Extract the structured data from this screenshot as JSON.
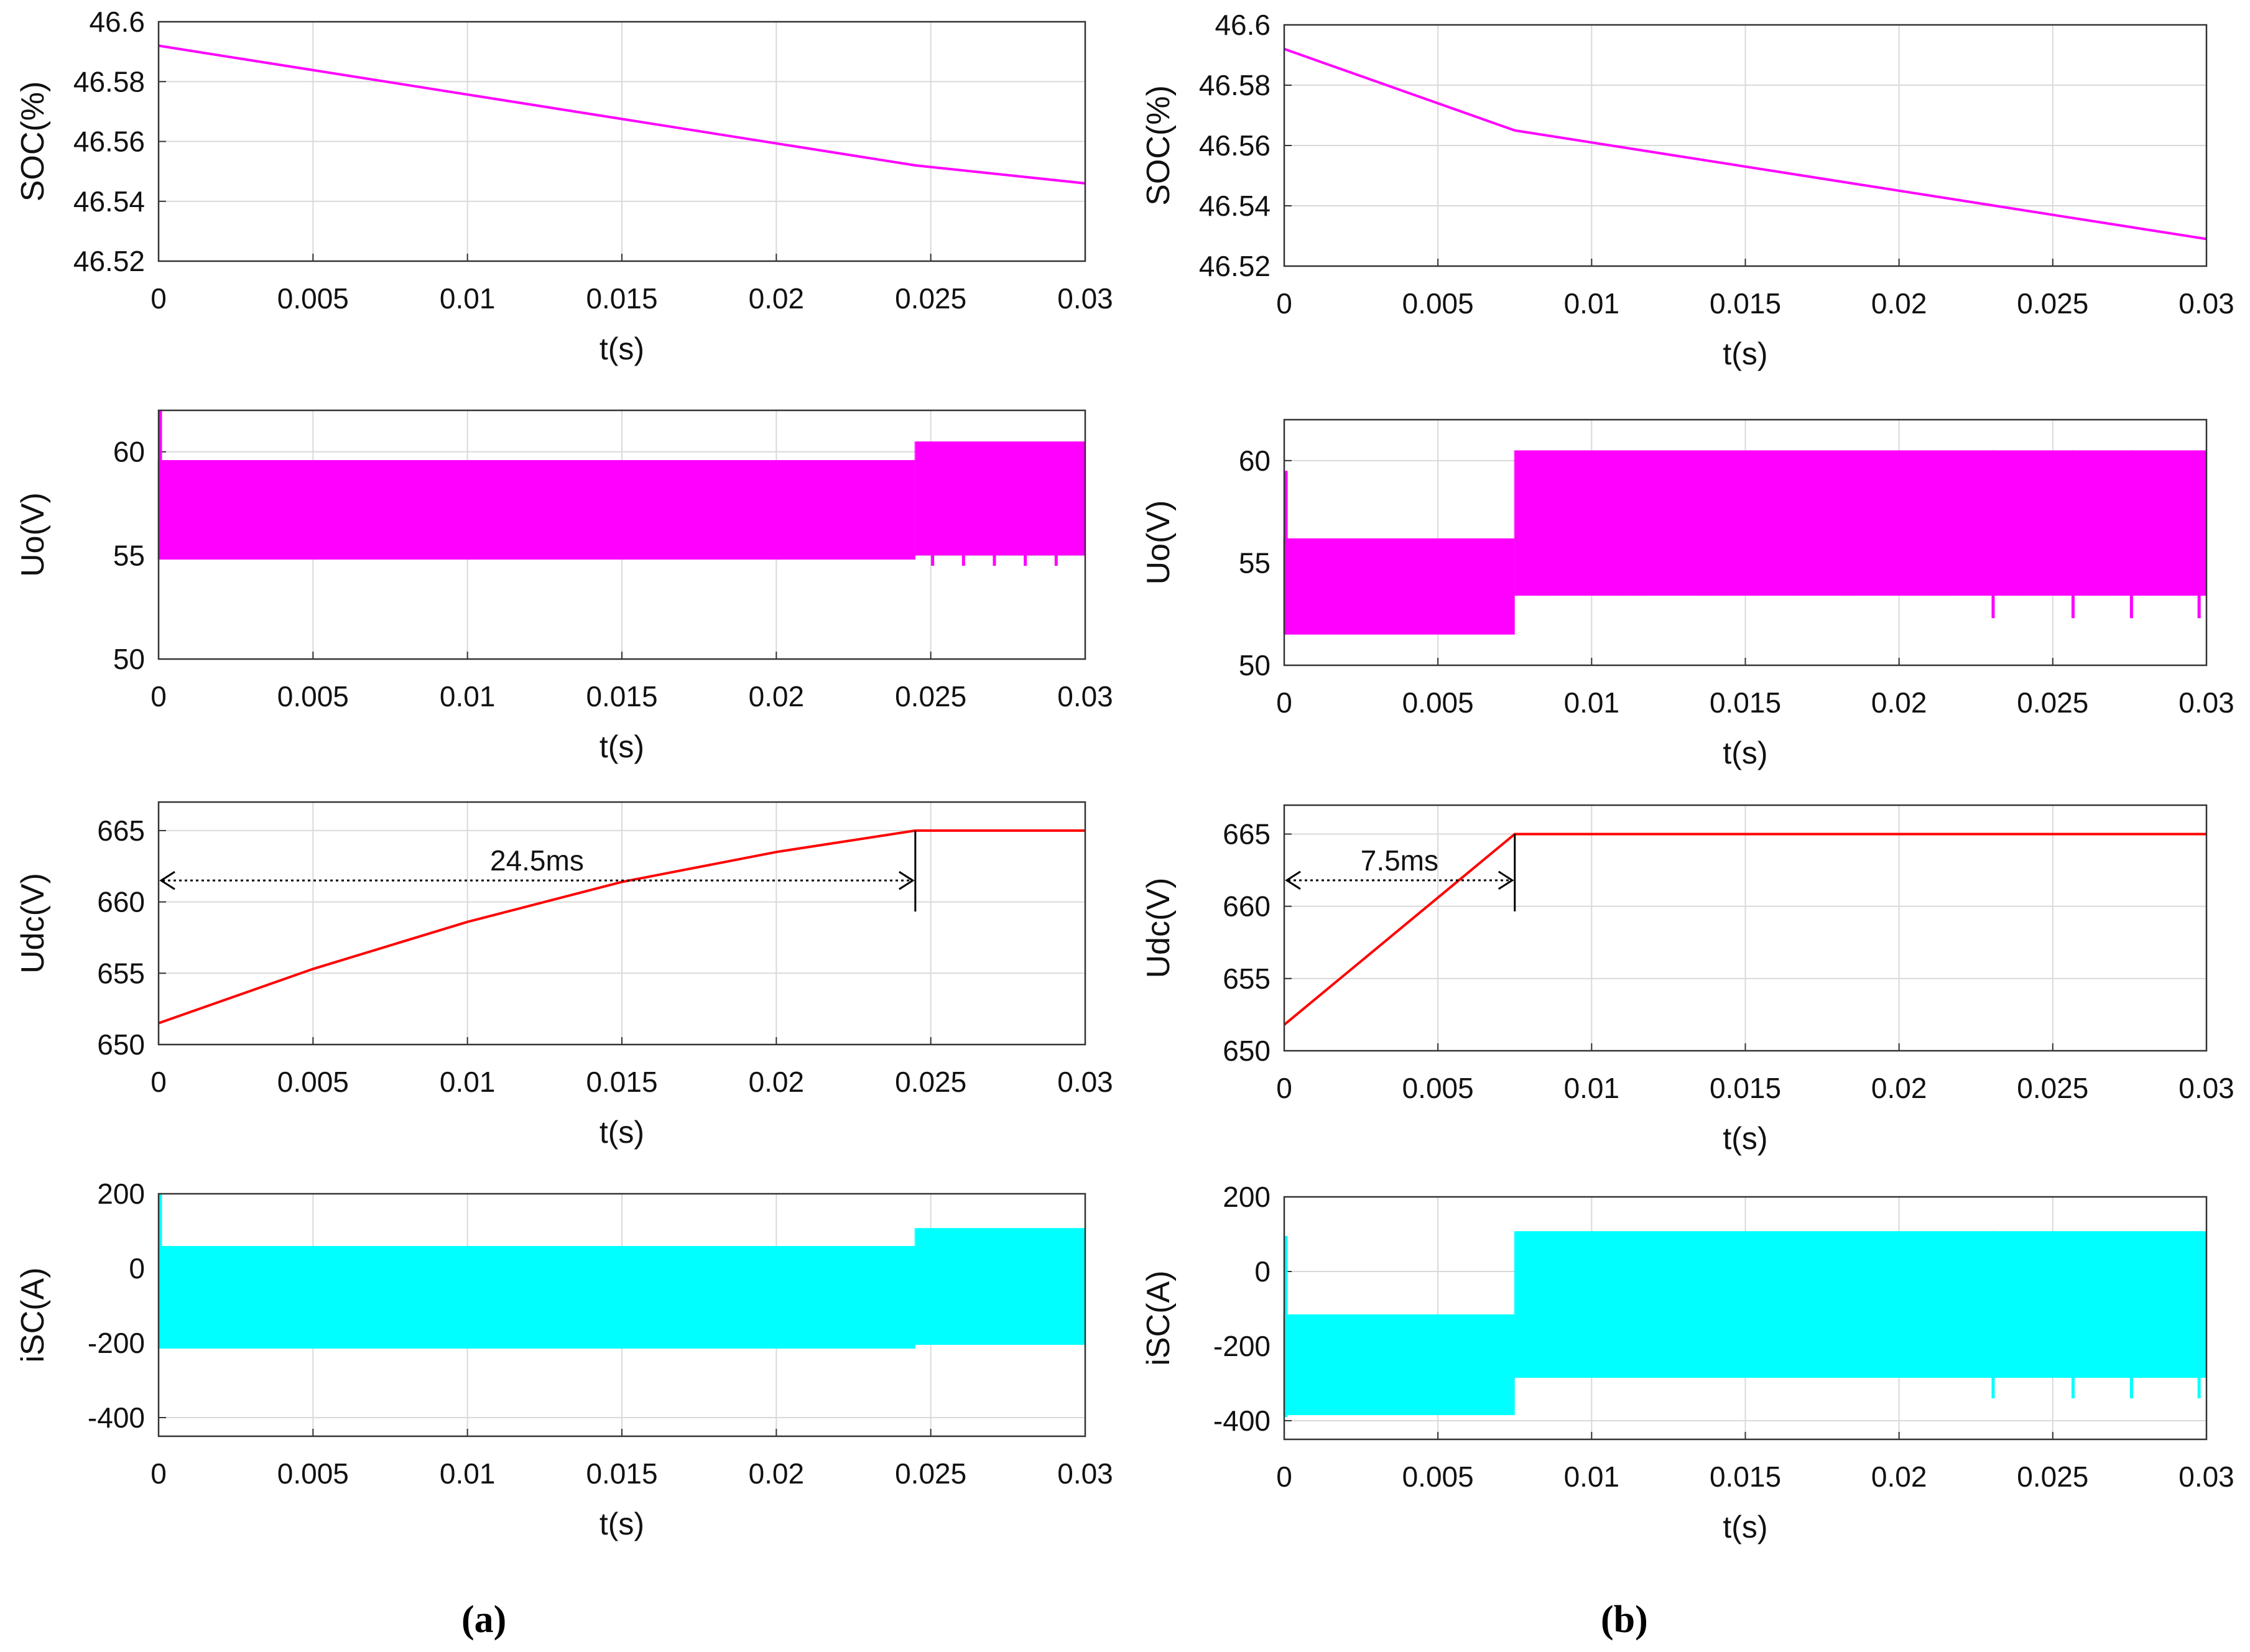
{
  "chart_data": [
    {
      "type": "line",
      "panel": "(a)",
      "ylabel": "SOC(%)",
      "xlabel": "t(s)",
      "xlim": [
        0,
        0.03
      ],
      "ylim": [
        46.52,
        46.6
      ],
      "xticks": [
        "0",
        "0.005",
        "0.01",
        "0.015",
        "0.02",
        "0.025",
        "0.03"
      ],
      "yticks": [
        "46.52",
        "46.54",
        "46.56",
        "46.58",
        "46.6"
      ],
      "grid": true,
      "color": "#ff00ff",
      "series": [
        {
          "x": [
            0,
            0.0245,
            0.03
          ],
          "y": [
            46.592,
            46.552,
            46.546
          ]
        }
      ]
    },
    {
      "type": "area",
      "panel": "(a)",
      "ylabel": "Uo(V)",
      "xlabel": "t(s)",
      "xlim": [
        0,
        0.03
      ],
      "ylim": [
        50,
        62
      ],
      "xticks": [
        "0",
        "0.005",
        "0.01",
        "0.015",
        "0.02",
        "0.025",
        "0.03"
      ],
      "yticks": [
        "50",
        "55",
        "60"
      ],
      "grid": true,
      "color": "#ff00ff",
      "envelope": [
        {
          "x0": 0,
          "x1": 0.0245,
          "lo": 54.8,
          "hi": 59.6
        },
        {
          "x0": 0.0245,
          "x1": 0.03,
          "lo": 55.0,
          "hi": 60.5
        }
      ],
      "spikes": [
        {
          "x": 0,
          "hi": 62,
          "lo": 55
        },
        {
          "x": 0.025,
          "lo": 54.5
        },
        {
          "x": 0.026,
          "lo": 54.5
        },
        {
          "x": 0.027,
          "lo": 54.5
        },
        {
          "x": 0.028,
          "lo": 54.5
        },
        {
          "x": 0.029,
          "lo": 54.5
        }
      ]
    },
    {
      "type": "line",
      "panel": "(a)",
      "ylabel": "Udc(V)",
      "xlabel": "t(s)",
      "xlim": [
        0,
        0.03
      ],
      "ylim": [
        650,
        667
      ],
      "xticks": [
        "0",
        "0.005",
        "0.01",
        "0.015",
        "0.02",
        "0.025",
        "0.03"
      ],
      "yticks": [
        "650",
        "655",
        "660",
        "665"
      ],
      "grid": true,
      "color": "#ff0000",
      "series": [
        {
          "x": [
            0,
            0.005,
            0.01,
            0.015,
            0.02,
            0.0245,
            0.03
          ],
          "y": [
            651.5,
            655.3,
            658.6,
            661.4,
            663.5,
            665.0,
            665.0
          ]
        }
      ],
      "annotation": {
        "text": "24.5ms",
        "x0": 0,
        "x1": 0.0245,
        "y": 661.5
      }
    },
    {
      "type": "area",
      "panel": "(a)",
      "ylabel": "iSC(A)",
      "xlabel": "t(s)",
      "xlim": [
        0,
        0.03
      ],
      "ylim": [
        -450,
        200
      ],
      "xticks": [
        "0",
        "0.005",
        "0.01",
        "0.015",
        "0.02",
        "0.025",
        "0.03"
      ],
      "yticks": [
        "-400",
        "-200",
        "0",
        "200"
      ],
      "grid": true,
      "color": "#00ffff",
      "envelope": [
        {
          "x0": 0,
          "x1": 0.0245,
          "lo": -215,
          "hi": 60
        },
        {
          "x0": 0.0245,
          "x1": 0.03,
          "lo": -205,
          "hi": 108
        }
      ],
      "spikes": [
        {
          "x": 0,
          "hi": 200,
          "lo": -150
        }
      ]
    },
    {
      "type": "line",
      "panel": "(b)",
      "ylabel": "SOC(%)",
      "xlabel": "t(s)",
      "xlim": [
        0,
        0.03
      ],
      "ylim": [
        46.52,
        46.6
      ],
      "xticks": [
        "0",
        "0.005",
        "0.01",
        "0.015",
        "0.02",
        "0.025",
        "0.03"
      ],
      "yticks": [
        "46.52",
        "46.54",
        "46.56",
        "46.58",
        "46.6"
      ],
      "grid": true,
      "color": "#ff00ff",
      "series": [
        {
          "x": [
            0,
            0.0075,
            0.03
          ],
          "y": [
            46.592,
            46.565,
            46.529
          ]
        }
      ]
    },
    {
      "type": "area",
      "panel": "(b)",
      "ylabel": "Uo(V)",
      "xlabel": "t(s)",
      "xlim": [
        0,
        0.03
      ],
      "ylim": [
        50,
        62
      ],
      "xticks": [
        "0",
        "0.005",
        "0.01",
        "0.015",
        "0.02",
        "0.025",
        "0.03"
      ],
      "yticks": [
        "50",
        "55",
        "60"
      ],
      "grid": true,
      "color": "#ff00ff",
      "envelope": [
        {
          "x0": 0,
          "x1": 0.0075,
          "lo": 51.5,
          "hi": 56.2
        },
        {
          "x0": 0.0075,
          "x1": 0.03,
          "lo": 53.4,
          "hi": 60.5
        }
      ],
      "spikes": [
        {
          "x": 0,
          "hi": 59.5,
          "lo": 51.5
        },
        {
          "x": 0.023,
          "lo": 52.3
        },
        {
          "x": 0.0256,
          "lo": 52.3
        },
        {
          "x": 0.0275,
          "lo": 52.3
        },
        {
          "x": 0.0297,
          "lo": 52.3
        }
      ]
    },
    {
      "type": "line",
      "panel": "(b)",
      "ylabel": "Udc(V)",
      "xlabel": "t(s)",
      "xlim": [
        0,
        0.03
      ],
      "ylim": [
        650,
        667
      ],
      "xticks": [
        "0",
        "0.005",
        "0.01",
        "0.015",
        "0.02",
        "0.025",
        "0.03"
      ],
      "yticks": [
        "650",
        "655",
        "660",
        "665"
      ],
      "grid": true,
      "color": "#ff0000",
      "series": [
        {
          "x": [
            0,
            0.0075,
            0.03
          ],
          "y": [
            651.8,
            665.0,
            665.0
          ]
        }
      ],
      "annotation": {
        "text": "7.5ms",
        "x0": 0,
        "x1": 0.0075,
        "y": 661.8
      }
    },
    {
      "type": "area",
      "panel": "(b)",
      "ylabel": "iSC(A)",
      "xlabel": "t(s)",
      "xlim": [
        0,
        0.03
      ],
      "ylim": [
        -450,
        200
      ],
      "xticks": [
        "0",
        "0.005",
        "0.01",
        "0.015",
        "0.02",
        "0.025",
        "0.03"
      ],
      "yticks": [
        "-400",
        "-200",
        "0",
        "200"
      ],
      "grid": true,
      "color": "#00ffff",
      "envelope": [
        {
          "x0": 0,
          "x1": 0.0075,
          "lo": -385,
          "hi": -115
        },
        {
          "x0": 0.0075,
          "x1": 0.03,
          "lo": -285,
          "hi": 108
        }
      ],
      "spikes": [
        {
          "x": 0,
          "hi": 95,
          "lo": -390
        },
        {
          "x": 0.023,
          "lo": -340
        },
        {
          "x": 0.0256,
          "lo": -340
        },
        {
          "x": 0.0275,
          "lo": -340
        },
        {
          "x": 0.0297,
          "lo": -340
        }
      ]
    }
  ],
  "labels": {
    "a": "(a)",
    "b": "(b)"
  }
}
